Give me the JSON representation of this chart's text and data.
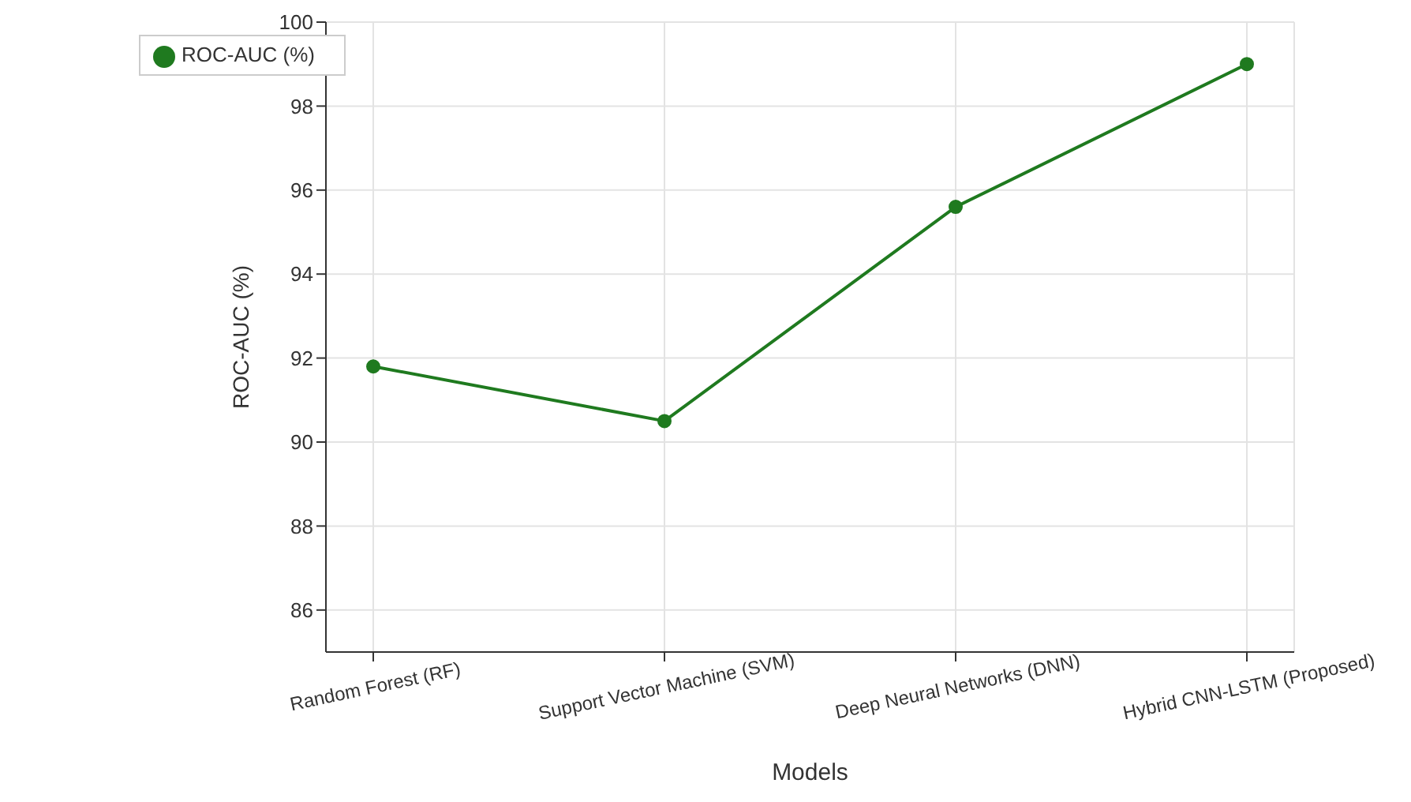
{
  "chart_data": {
    "type": "line",
    "xlabel": "Models",
    "ylabel": "ROC-AUC (%)",
    "categories": [
      "Random Forest (RF)",
      "Support Vector Machine (SVM)",
      "Deep Neural Networks (DNN)",
      "Hybrid CNN-LSTM (Proposed)"
    ],
    "series": [
      {
        "name": "ROC-AUC (%)",
        "color": "#1f7a1f",
        "values": [
          91.8,
          90.5,
          95.6,
          99.0
        ]
      }
    ],
    "ylim": [
      85,
      100
    ],
    "yticks": [
      86,
      88,
      90,
      92,
      94,
      96,
      98,
      100
    ],
    "grid": true,
    "legend": "top left",
    "marker": "circle",
    "line_style": "solid"
  }
}
